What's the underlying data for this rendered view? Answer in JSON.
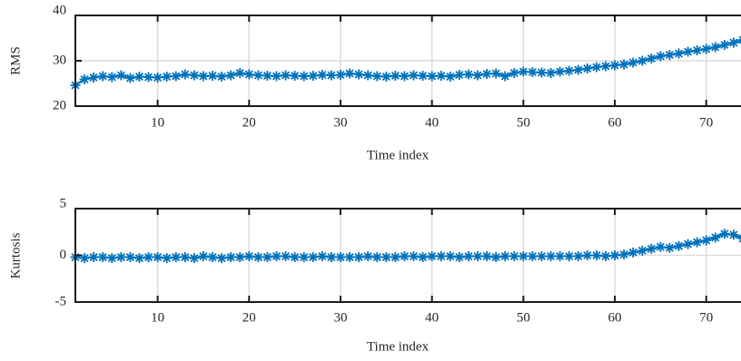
{
  "chart_data": [
    {
      "type": "line",
      "ylabel": "RMS",
      "xlabel": "Time index",
      "x": [
        1,
        2,
        3,
        4,
        5,
        6,
        7,
        8,
        9,
        10,
        11,
        12,
        13,
        14,
        15,
        16,
        17,
        18,
        19,
        20,
        21,
        22,
        23,
        24,
        25,
        26,
        27,
        28,
        29,
        30,
        31,
        32,
        33,
        34,
        35,
        36,
        37,
        38,
        39,
        40,
        41,
        42,
        43,
        44,
        45,
        46,
        47,
        48,
        49,
        50,
        51,
        52,
        53,
        54,
        55,
        56,
        57,
        58,
        59,
        60,
        61,
        62,
        63,
        64,
        65,
        66,
        67,
        68,
        69,
        70,
        71,
        72,
        73,
        74
      ],
      "series": [
        {
          "color": "#0072bd",
          "values": [
            24.6,
            25.9,
            26.3,
            26.6,
            26.4,
            26.8,
            26.2,
            26.5,
            26.4,
            26.3,
            26.5,
            26.6,
            27.0,
            26.8,
            26.6,
            26.7,
            26.5,
            26.8,
            27.3,
            27.0,
            26.8,
            26.7,
            26.6,
            26.8,
            26.7,
            26.6,
            26.7,
            26.9,
            26.8,
            26.9,
            27.2,
            27.0,
            26.8,
            26.6,
            26.5,
            26.7,
            26.6,
            26.8,
            26.7,
            26.6,
            26.7,
            26.5,
            26.9,
            27.0,
            26.8,
            27.1,
            27.2,
            26.6,
            27.3,
            27.6,
            27.5,
            27.4,
            27.3,
            27.6,
            27.8,
            28.0,
            28.3,
            28.6,
            28.8,
            29.0,
            29.2,
            29.6,
            30.0,
            30.5,
            31.0,
            31.3,
            31.6,
            32.0,
            32.3,
            32.6,
            33.0,
            33.5,
            34.0,
            34.6
          ]
        }
      ],
      "xlim": [
        1,
        74
      ],
      "ylim": [
        20,
        40
      ],
      "xticks": [
        10,
        20,
        30,
        40,
        50,
        60,
        70
      ],
      "yticks": [
        20,
        30,
        40
      ],
      "grid": true
    },
    {
      "type": "line",
      "ylabel": "Kurtosis",
      "xlabel": "Time index",
      "x": [
        1,
        2,
        3,
        4,
        5,
        6,
        7,
        8,
        9,
        10,
        11,
        12,
        13,
        14,
        15,
        16,
        17,
        18,
        19,
        20,
        21,
        22,
        23,
        24,
        25,
        26,
        27,
        28,
        29,
        30,
        31,
        32,
        33,
        34,
        35,
        36,
        37,
        38,
        39,
        40,
        41,
        42,
        43,
        44,
        45,
        46,
        47,
        48,
        49,
        50,
        51,
        52,
        53,
        54,
        55,
        56,
        57,
        58,
        59,
        60,
        61,
        62,
        63,
        64,
        65,
        66,
        67,
        68,
        69,
        70,
        71,
        72,
        73,
        74
      ],
      "series": [
        {
          "color": "#0072bd",
          "values": [
            -0.2,
            -0.3,
            -0.2,
            -0.2,
            -0.3,
            -0.2,
            -0.2,
            -0.3,
            -0.2,
            -0.2,
            -0.3,
            -0.2,
            -0.2,
            -0.3,
            -0.1,
            -0.2,
            -0.3,
            -0.2,
            -0.2,
            -0.1,
            -0.2,
            -0.2,
            -0.1,
            -0.1,
            -0.2,
            -0.2,
            -0.2,
            -0.1,
            -0.2,
            -0.2,
            -0.2,
            -0.2,
            -0.1,
            -0.2,
            -0.2,
            -0.2,
            -0.1,
            -0.1,
            -0.2,
            -0.1,
            -0.1,
            -0.1,
            -0.2,
            -0.1,
            -0.1,
            -0.1,
            -0.2,
            -0.1,
            -0.1,
            -0.1,
            -0.1,
            -0.1,
            -0.1,
            -0.1,
            -0.1,
            -0.1,
            0,
            0,
            -0.1,
            0,
            0.1,
            0.3,
            0.5,
            0.7,
            0.9,
            0.8,
            1.0,
            1.2,
            1.4,
            1.6,
            1.9,
            2.3,
            2.2,
            1.8
          ]
        }
      ],
      "xlim": [
        1,
        74
      ],
      "ylim": [
        -5,
        5
      ],
      "xticks": [
        10,
        20,
        30,
        40,
        50,
        60,
        70
      ],
      "yticks": [
        -5,
        0,
        5
      ],
      "grid": true
    }
  ]
}
